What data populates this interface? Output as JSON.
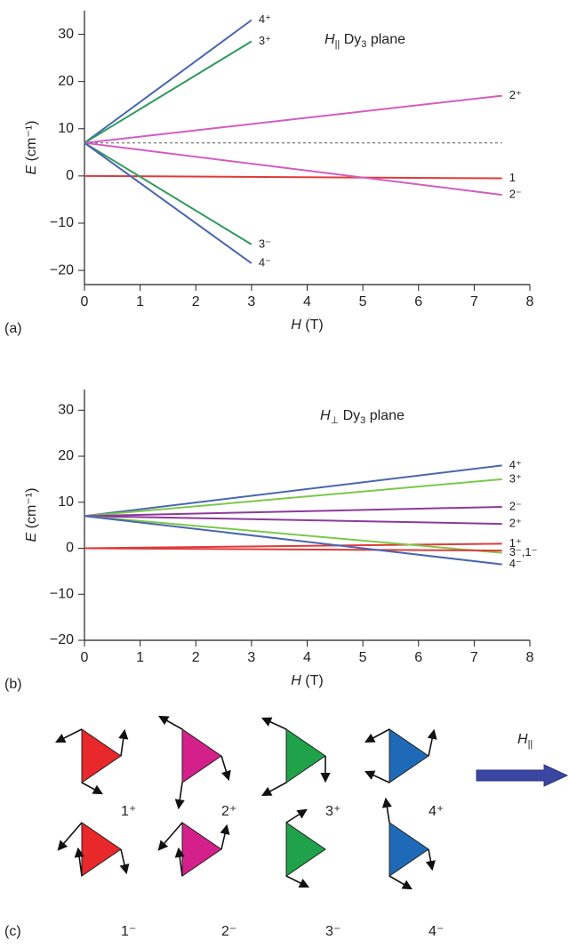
{
  "chart_data": [
    {
      "type": "line",
      "panel": "(a)",
      "annotation": [
        "H",
        "||",
        " Dy",
        "3",
        " plane"
      ],
      "xlabel": [
        "H",
        " (T)"
      ],
      "ylabel": [
        "E",
        " (cm⁻¹)"
      ],
      "xlim": [
        0,
        8
      ],
      "xticks": [
        0,
        1,
        2,
        3,
        4,
        5,
        6,
        7,
        8
      ],
      "ylim": [
        -23,
        35
      ],
      "yticks": [
        {
          "value": -20,
          "label": "−20"
        },
        {
          "value": -10,
          "label": "−10"
        },
        0,
        10,
        20,
        30
      ],
      "series": [
        {
          "name": "4⁺",
          "color": "#4a66b0",
          "x": [
            0,
            3
          ],
          "values": [
            7,
            33
          ]
        },
        {
          "name": "3⁺",
          "color": "#2e9a5c",
          "x": [
            0,
            3
          ],
          "values": [
            7,
            28.5
          ]
        },
        {
          "name": "2⁺",
          "color": "#d45cc0",
          "x": [
            0,
            7.5
          ],
          "values": [
            7,
            17
          ]
        },
        {
          "color": "#555555",
          "style": "dashed",
          "x": [
            0,
            7.5
          ],
          "values": [
            7,
            7
          ]
        },
        {
          "name": "1",
          "color": "#e03a3a",
          "x": [
            0,
            7.5
          ],
          "values": [
            0,
            -0.5
          ]
        },
        {
          "name": "2⁻",
          "color": "#d45cc0",
          "x": [
            0,
            7.5
          ],
          "values": [
            7,
            -4
          ]
        },
        {
          "name": "3⁻",
          "color": "#2e9a5c",
          "x": [
            0,
            3
          ],
          "values": [
            7,
            -14.5
          ]
        },
        {
          "name": "4⁻",
          "color": "#4a66b0",
          "x": [
            0,
            3
          ],
          "values": [
            7,
            -18.5
          ]
        }
      ]
    },
    {
      "type": "line",
      "panel": "(b)",
      "annotation": [
        "H",
        "⊥",
        " Dy",
        "3",
        " plane"
      ],
      "xlabel": [
        "H",
        " (T)"
      ],
      "ylabel": [
        "E",
        " (cm⁻¹)"
      ],
      "xlim": [
        0,
        8
      ],
      "xticks": [
        0,
        1,
        2,
        3,
        4,
        5,
        6,
        7,
        8
      ],
      "ylim": [
        -20,
        34.5
      ],
      "yticks": [
        {
          "value": -20,
          "label": "−20"
        },
        {
          "value": -10,
          "label": "−10"
        },
        0,
        10,
        20,
        30
      ],
      "series": [
        {
          "name": "4⁺",
          "color": "#4a66b0",
          "x": [
            0,
            7.5
          ],
          "values": [
            7,
            18
          ]
        },
        {
          "name": "3⁺",
          "color": "#7cc84a",
          "x": [
            0,
            7.5
          ],
          "values": [
            7,
            15
          ]
        },
        {
          "name": "2⁻",
          "color": "#8c3a9c",
          "x": [
            0,
            7.5
          ],
          "values": [
            7,
            9
          ]
        },
        {
          "name": "2⁺",
          "color": "#8c3a9c",
          "x": [
            0,
            7.5
          ],
          "values": [
            7,
            5.3
          ]
        },
        {
          "name": "1⁺",
          "color": "#e03a3a",
          "x": [
            0,
            7.5
          ],
          "values": [
            0,
            1
          ]
        },
        {
          "name": "3⁻,1⁻",
          "color": "#7cc84a",
          "x": [
            0,
            7.5
          ],
          "values": [
            7,
            -1
          ]
        },
        {
          "color": "#e03a3a",
          "x": [
            0,
            7.5
          ],
          "values": [
            0,
            -0.5
          ]
        },
        {
          "name": "4⁻",
          "color": "#4a66b0",
          "x": [
            0,
            7.5
          ],
          "values": [
            7,
            -3.5
          ]
        }
      ]
    }
  ],
  "diagram": {
    "panel": "(c)",
    "field_label": [
      "H",
      "||"
    ],
    "states": [
      "1⁺",
      "2⁺",
      "3⁺",
      "4⁺",
      "1⁻",
      "2⁻",
      "3⁻",
      "4⁻"
    ]
  }
}
